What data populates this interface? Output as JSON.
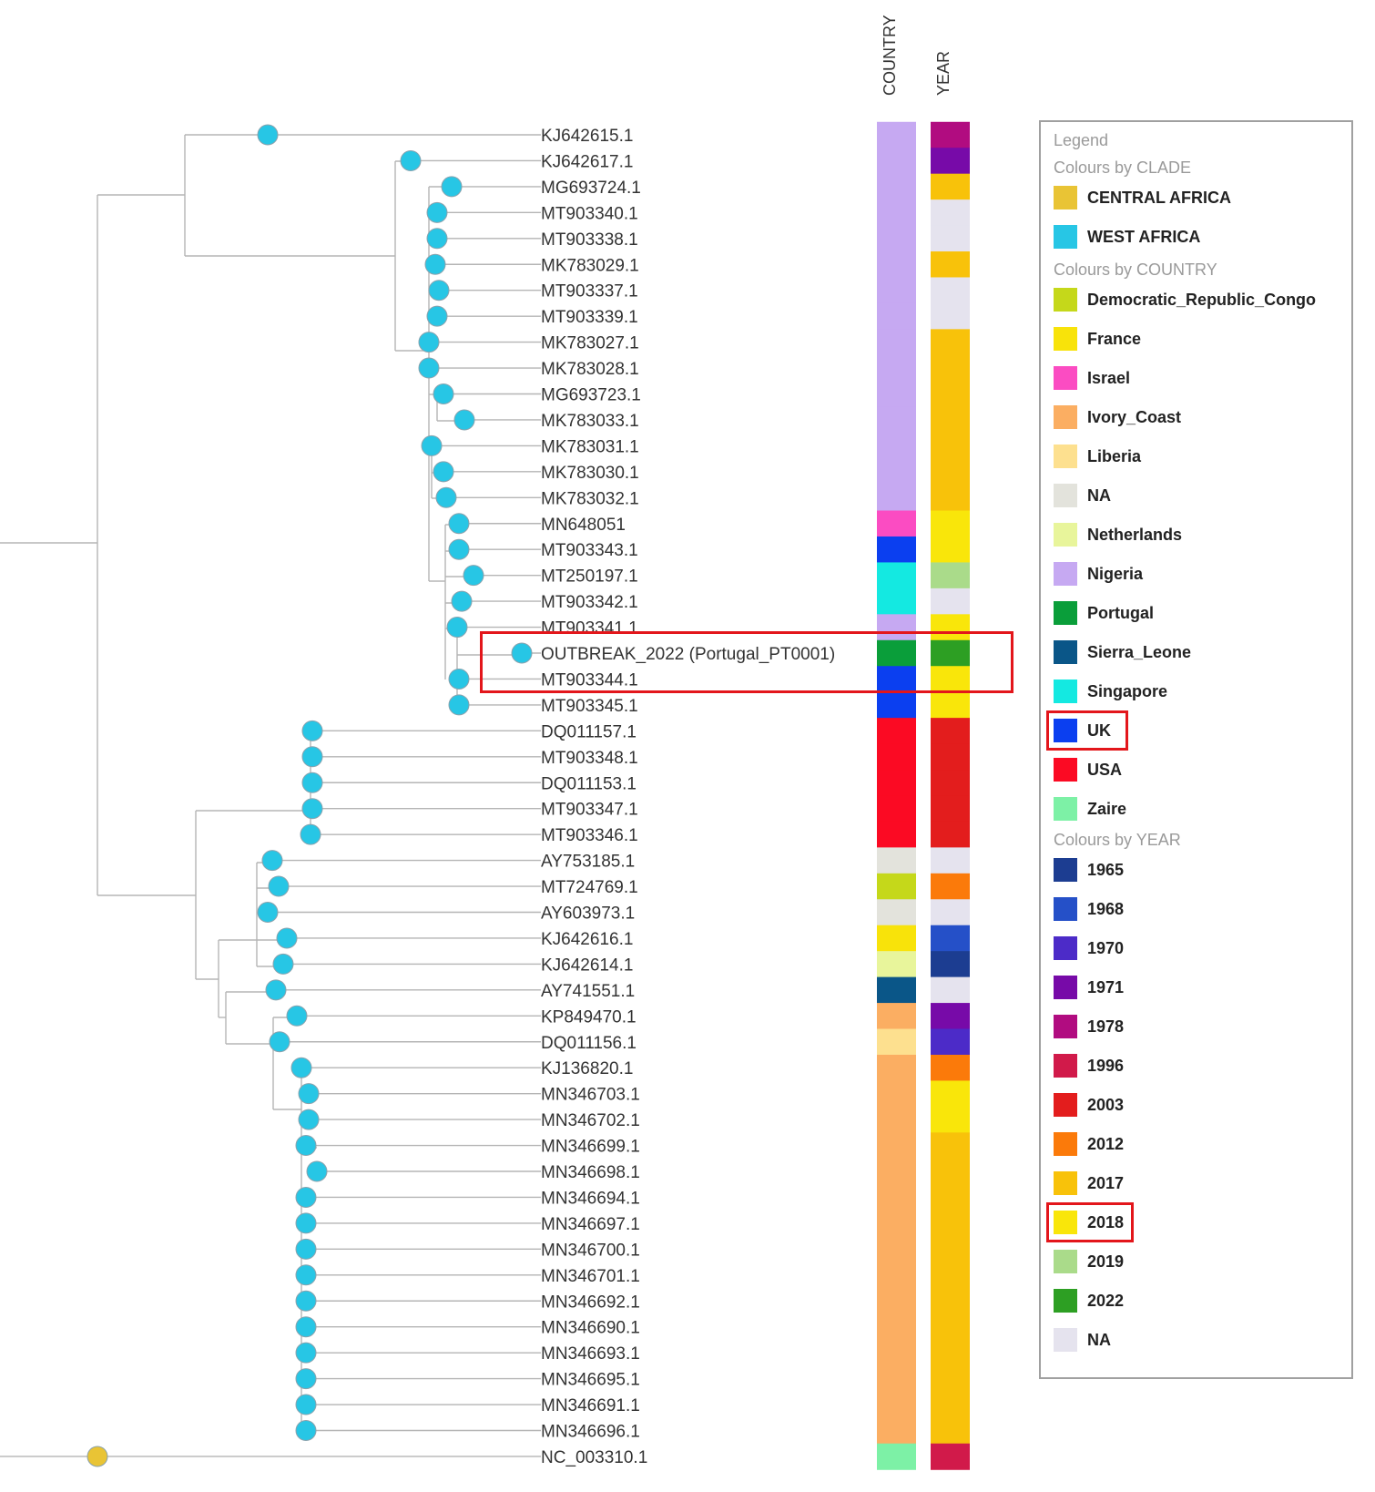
{
  "columns": {
    "country": "COUNTRY",
    "year": "YEAR"
  },
  "colors": {
    "clade": {
      "CENTRAL AFRICA": "#e9c435",
      "WEST AFRICA": "#27c6e5"
    },
    "country": {
      "Democratic_Republic_Congo": "#c5d81a",
      "France": "#f8e30a",
      "Israel": "#fb4cc2",
      "Ivory_Coast": "#fbae62",
      "Liberia": "#fde08f",
      "NA": "#e3e3dc",
      "Netherlands": "#e8f59b",
      "Nigeria": "#c6a9f2",
      "Portugal": "#0a9e3a",
      "Sierra_Leone": "#0a5688",
      "Singapore": "#14e9e1",
      "UK": "#0b3ff0",
      "USA": "#fb0a23",
      "Zaire": "#7df1a6"
    },
    "year": {
      "1965": "#1c3d91",
      "1968": "#2550c8",
      "1970": "#4c2bc8",
      "1971": "#770aa8",
      "1978": "#b10c80",
      "1996": "#d11a4a",
      "2003": "#e31d1d",
      "2012": "#fb7a0a",
      "2017": "#f8c20a",
      "2018": "#f9e60a",
      "2019": "#aadb8a",
      "2022": "#2d9f23",
      "NA": "#e5e3ee"
    }
  },
  "tips": [
    {
      "name": "KJ642615.1",
      "clade": "WEST AFRICA",
      "country": "Nigeria",
      "year": "1978"
    },
    {
      "name": "KJ642617.1",
      "clade": "WEST AFRICA",
      "country": "Nigeria",
      "year": "1971"
    },
    {
      "name": "MG693724.1",
      "clade": "WEST AFRICA",
      "country": "Nigeria",
      "year": "2017"
    },
    {
      "name": "MT903340.1",
      "clade": "WEST AFRICA",
      "country": "Nigeria",
      "year": "NA"
    },
    {
      "name": "MT903338.1",
      "clade": "WEST AFRICA",
      "country": "Nigeria",
      "year": "NA"
    },
    {
      "name": "MK783029.1",
      "clade": "WEST AFRICA",
      "country": "Nigeria",
      "year": "2017"
    },
    {
      "name": "MT903337.1",
      "clade": "WEST AFRICA",
      "country": "Nigeria",
      "year": "NA"
    },
    {
      "name": "MT903339.1",
      "clade": "WEST AFRICA",
      "country": "Nigeria",
      "year": "NA"
    },
    {
      "name": "MK783027.1",
      "clade": "WEST AFRICA",
      "country": "Nigeria",
      "year": "2017"
    },
    {
      "name": "MK783028.1",
      "clade": "WEST AFRICA",
      "country": "Nigeria",
      "year": "2017"
    },
    {
      "name": "MG693723.1",
      "clade": "WEST AFRICA",
      "country": "Nigeria",
      "year": "2017"
    },
    {
      "name": "MK783033.1",
      "clade": "WEST AFRICA",
      "country": "Nigeria",
      "year": "2017"
    },
    {
      "name": "MK783031.1",
      "clade": "WEST AFRICA",
      "country": "Nigeria",
      "year": "2017"
    },
    {
      "name": "MK783030.1",
      "clade": "WEST AFRICA",
      "country": "Nigeria",
      "year": "2017"
    },
    {
      "name": "MK783032.1",
      "clade": "WEST AFRICA",
      "country": "Nigeria",
      "year": "2017"
    },
    {
      "name": "MN648051",
      "clade": "WEST AFRICA",
      "country": "Israel",
      "year": "2018"
    },
    {
      "name": "MT903343.1",
      "clade": "WEST AFRICA",
      "country": "UK",
      "year": "2018"
    },
    {
      "name": "MT250197.1",
      "clade": "WEST AFRICA",
      "country": "Singapore",
      "year": "2019"
    },
    {
      "name": "MT903342.1",
      "clade": "WEST AFRICA",
      "country": "Singapore",
      "year": "NA"
    },
    {
      "name": "MT903341.1",
      "clade": "WEST AFRICA",
      "country": "Nigeria",
      "year": "2018"
    },
    {
      "name": "OUTBREAK_2022 (Portugal_PT0001)",
      "clade": "WEST AFRICA",
      "country": "Portugal",
      "year": "2022"
    },
    {
      "name": "MT903344.1",
      "clade": "WEST AFRICA",
      "country": "UK",
      "year": "2018"
    },
    {
      "name": "MT903345.1",
      "clade": "WEST AFRICA",
      "country": "UK",
      "year": "2018"
    },
    {
      "name": "DQ011157.1",
      "clade": "WEST AFRICA",
      "country": "USA",
      "year": "2003"
    },
    {
      "name": "MT903348.1",
      "clade": "WEST AFRICA",
      "country": "USA",
      "year": "2003"
    },
    {
      "name": "DQ011153.1",
      "clade": "WEST AFRICA",
      "country": "USA",
      "year": "2003"
    },
    {
      "name": "MT903347.1",
      "clade": "WEST AFRICA",
      "country": "USA",
      "year": "2003"
    },
    {
      "name": "MT903346.1",
      "clade": "WEST AFRICA",
      "country": "USA",
      "year": "2003"
    },
    {
      "name": "AY753185.1",
      "clade": "WEST AFRICA",
      "country": "NA",
      "year": "NA"
    },
    {
      "name": "MT724769.1",
      "clade": "WEST AFRICA",
      "country": "Democratic_Republic_Congo",
      "year": "2012"
    },
    {
      "name": "AY603973.1",
      "clade": "WEST AFRICA",
      "country": "NA",
      "year": "NA"
    },
    {
      "name": "KJ642616.1",
      "clade": "WEST AFRICA",
      "country": "France",
      "year": "1968"
    },
    {
      "name": "KJ642614.1",
      "clade": "WEST AFRICA",
      "country": "Netherlands",
      "year": "1965"
    },
    {
      "name": "AY741551.1",
      "clade": "WEST AFRICA",
      "country": "Sierra_Leone",
      "year": "NA"
    },
    {
      "name": "KP849470.1",
      "clade": "WEST AFRICA",
      "country": "Ivory_Coast",
      "year": "1971"
    },
    {
      "name": "DQ011156.1",
      "clade": "WEST AFRICA",
      "country": "Liberia",
      "year": "1970"
    },
    {
      "name": "KJ136820.1",
      "clade": "WEST AFRICA",
      "country": "Ivory_Coast",
      "year": "2012"
    },
    {
      "name": "MN346703.1",
      "clade": "WEST AFRICA",
      "country": "Ivory_Coast",
      "year": "2018"
    },
    {
      "name": "MN346702.1",
      "clade": "WEST AFRICA",
      "country": "Ivory_Coast",
      "year": "2018"
    },
    {
      "name": "MN346699.1",
      "clade": "WEST AFRICA",
      "country": "Ivory_Coast",
      "year": "2017"
    },
    {
      "name": "MN346698.1",
      "clade": "WEST AFRICA",
      "country": "Ivory_Coast",
      "year": "2017"
    },
    {
      "name": "MN346694.1",
      "clade": "WEST AFRICA",
      "country": "Ivory_Coast",
      "year": "2017"
    },
    {
      "name": "MN346697.1",
      "clade": "WEST AFRICA",
      "country": "Ivory_Coast",
      "year": "2017"
    },
    {
      "name": "MN346700.1",
      "clade": "WEST AFRICA",
      "country": "Ivory_Coast",
      "year": "2017"
    },
    {
      "name": "MN346701.1",
      "clade": "WEST AFRICA",
      "country": "Ivory_Coast",
      "year": "2017"
    },
    {
      "name": "MN346692.1",
      "clade": "WEST AFRICA",
      "country": "Ivory_Coast",
      "year": "2017"
    },
    {
      "name": "MN346690.1",
      "clade": "WEST AFRICA",
      "country": "Ivory_Coast",
      "year": "2017"
    },
    {
      "name": "MN346693.1",
      "clade": "WEST AFRICA",
      "country": "Ivory_Coast",
      "year": "2017"
    },
    {
      "name": "MN346695.1",
      "clade": "WEST AFRICA",
      "country": "Ivory_Coast",
      "year": "2017"
    },
    {
      "name": "MN346691.1",
      "clade": "WEST AFRICA",
      "country": "Ivory_Coast",
      "year": "2017"
    },
    {
      "name": "MN346696.1",
      "clade": "WEST AFRICA",
      "country": "Ivory_Coast",
      "year": "2017"
    },
    {
      "name": "NC_003310.1",
      "clade": "CENTRAL AFRICA",
      "country": "Zaire",
      "year": "1996"
    }
  ],
  "highlighted_tips": [
    "OUTBREAK_2022 (Portugal_PT0001)",
    "MT903344.1"
  ],
  "legend": {
    "title": "Legend",
    "sections": [
      {
        "title": "Colours by CLADE",
        "group": "clade",
        "items": [
          "CENTRAL AFRICA",
          "WEST AFRICA"
        ]
      },
      {
        "title": "Colours by COUNTRY",
        "group": "country",
        "items": [
          "Democratic_Republic_Congo",
          "France",
          "Israel",
          "Ivory_Coast",
          "Liberia",
          "NA",
          "Netherlands",
          "Nigeria",
          "Portugal",
          "Sierra_Leone",
          "Singapore",
          "UK",
          "USA",
          "Zaire"
        ]
      },
      {
        "title": "Colours by YEAR",
        "group": "year",
        "items": [
          "1965",
          "1968",
          "1970",
          "1971",
          "1978",
          "1996",
          "2003",
          "2012",
          "2017",
          "2018",
          "2019",
          "2022",
          "NA"
        ]
      }
    ],
    "highlighted_items": [
      "country:UK",
      "year:2018"
    ]
  }
}
